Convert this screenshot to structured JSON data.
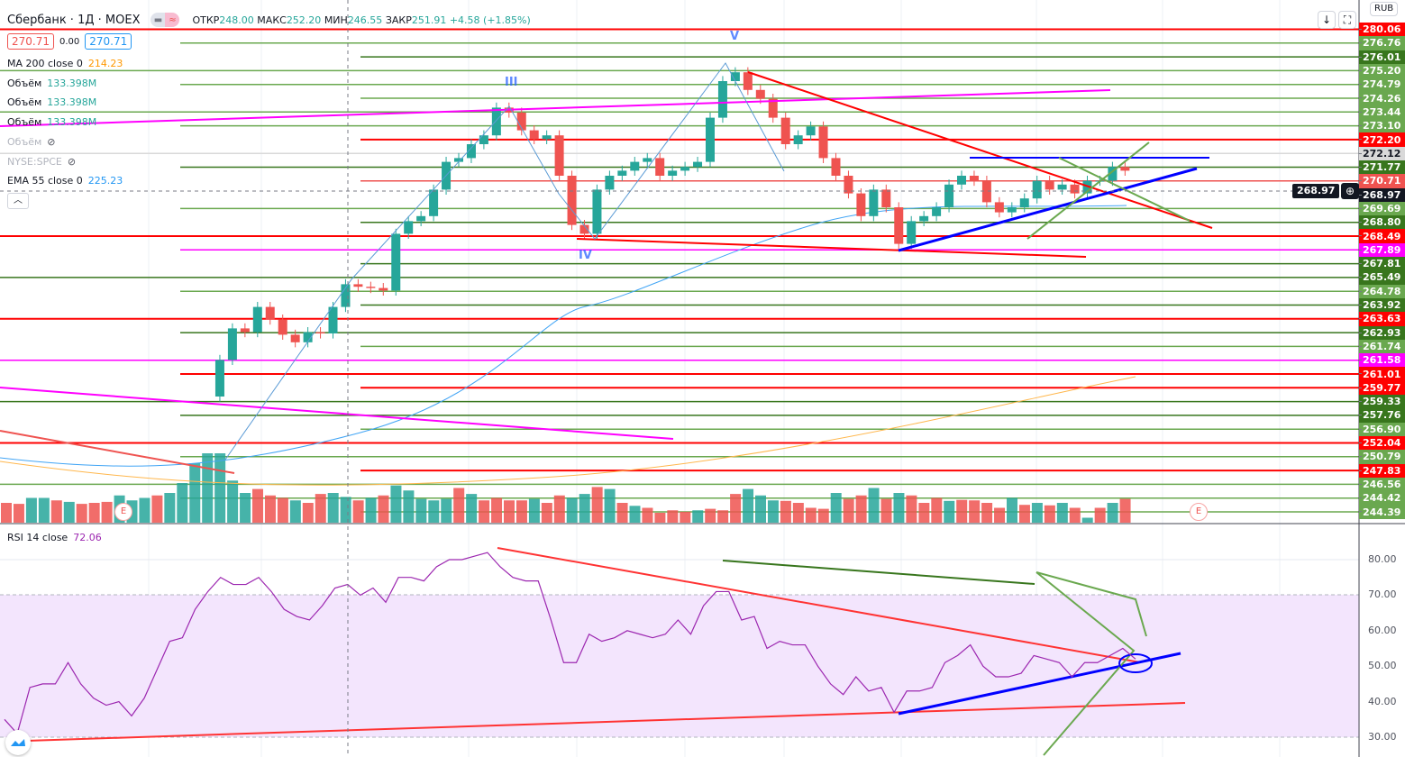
{
  "header": {
    "symbol": "Сбербанк · 1Д · MOEX",
    "ohlc": {
      "o_label": "ОТКР",
      "o": "248.00",
      "h_label": "МАКС",
      "h": "252.20",
      "l_label": "МИН",
      "l": "246.55",
      "c_label": "ЗАКР",
      "c": "251.91",
      "change": "+4.58 (+1.85%)"
    },
    "sell": "270.71",
    "spread": "0.00",
    "buy": "270.71"
  },
  "indicators": [
    {
      "name": "MA 200 close 0",
      "value": "214.23",
      "color": "#ff9800"
    },
    {
      "name": "Объём",
      "value": "133.398M",
      "color": "#26a69a"
    },
    {
      "name": "Объём",
      "value": "133.398M",
      "color": "#26a69a"
    },
    {
      "name": "Объём",
      "value": "133.398M",
      "color": "#26a69a"
    },
    {
      "name": "Объём",
      "value": "",
      "hidden": true
    },
    {
      "name": "NYSE:SPCE",
      "value": "",
      "hidden": true
    },
    {
      "name": "EMA 55 close 0",
      "value": "225.23",
      "color": "#2196f3"
    }
  ],
  "toolbar": {
    "currency": "RUB",
    "crosshair_price": "268.97"
  },
  "waves": [
    "III",
    "IV",
    "V"
  ],
  "earnings_marker": "E",
  "levels": [
    {
      "t": "280.06",
      "c": "#ff0000"
    },
    {
      "t": "276.76",
      "c": "#6aa84f"
    },
    {
      "t": "276.01",
      "c": "#38761d"
    },
    {
      "t": "275.20",
      "c": "#6aa84f"
    },
    {
      "t": "274.79",
      "c": "#6aa84f"
    },
    {
      "t": "274.26",
      "c": "#6aa84f"
    },
    {
      "t": "273.44",
      "c": "#6aa84f"
    },
    {
      "t": "273.10",
      "c": "#6aa84f"
    },
    {
      "t": "272.20",
      "c": "#ff0000"
    },
    {
      "t": "272.12",
      "c": "#d9d9d9",
      "dark": true
    },
    {
      "t": "271.77",
      "c": "#38761d"
    },
    {
      "t": "270.71",
      "c": "#ef5350"
    },
    {
      "t": "268.97",
      "c": "#131722"
    },
    {
      "t": "269.69",
      "c": "#6aa84f"
    },
    {
      "t": "268.80",
      "c": "#38761d"
    },
    {
      "t": "268.49",
      "c": "#ff0000"
    },
    {
      "t": "267.89",
      "c": "#ff00ff"
    },
    {
      "t": "267.81",
      "c": "#38761d"
    },
    {
      "t": "265.49",
      "c": "#38761d"
    },
    {
      "t": "264.78",
      "c": "#6aa84f"
    },
    {
      "t": "263.92",
      "c": "#38761d"
    },
    {
      "t": "263.63",
      "c": "#ff0000"
    },
    {
      "t": "262.93",
      "c": "#38761d"
    },
    {
      "t": "261.74",
      "c": "#6aa84f"
    },
    {
      "t": "261.58",
      "c": "#ff00ff"
    },
    {
      "t": "261.01",
      "c": "#ff0000"
    },
    {
      "t": "259.77",
      "c": "#ff0000"
    },
    {
      "t": "259.33",
      "c": "#38761d"
    },
    {
      "t": "257.76",
      "c": "#38761d"
    },
    {
      "t": "256.90",
      "c": "#6aa84f"
    },
    {
      "t": "252.04",
      "c": "#ff0000"
    },
    {
      "t": "250.79",
      "c": "#6aa84f"
    },
    {
      "t": "247.83",
      "c": "#ff0000"
    },
    {
      "t": "246.56",
      "c": "#6aa84f"
    },
    {
      "t": "244.42",
      "c": "#6aa84f"
    },
    {
      "t": "244.39",
      "c": "#6aa84f"
    }
  ],
  "rsi": {
    "label": "RSI 14 close",
    "value": "72.06",
    "ticks": [
      "80.00",
      "70.00",
      "60.00",
      "50.00",
      "40.00",
      "30.00"
    ],
    "values": [
      35,
      31,
      44,
      45,
      45,
      51,
      45,
      41,
      39,
      40,
      36,
      41,
      49,
      57,
      58,
      66,
      71,
      75,
      73,
      73,
      75,
      71,
      66,
      64,
      63,
      67,
      72,
      73,
      70,
      72,
      68,
      75,
      75,
      74,
      78,
      80,
      80,
      81,
      82,
      78,
      75,
      74,
      74,
      63,
      51,
      51,
      59,
      57,
      58,
      60,
      59,
      58,
      59,
      63,
      59,
      67,
      71,
      71,
      63,
      64,
      55,
      57,
      56,
      56,
      50,
      45,
      42,
      47,
      43,
      44,
      37,
      43,
      43,
      44,
      51,
      53,
      56,
      50,
      47,
      47,
      48,
      53,
      52,
      51,
      47,
      51,
      51,
      53,
      55,
      52
    ]
  },
  "chart": {
    "colors": {
      "up": "#26a69a",
      "down": "#ef5350"
    },
    "closes": [
      250.0,
      252.9,
      255.4,
      255.1,
      257.1,
      256.1,
      254.9,
      254.3,
      255.1,
      255.0,
      257.1,
      258.9,
      258.7,
      258.6,
      258.4,
      262.9,
      263.9,
      264.3,
      266.4,
      268.6,
      268.9,
      270.0,
      270.7,
      272.9,
      272.5,
      271.1,
      270.4,
      270.7,
      267.5,
      263.6,
      262.9,
      266.4,
      267.5,
      267.9,
      268.6,
      268.9,
      267.5,
      267.9,
      268.2,
      268.6,
      272.1,
      275.0,
      275.7,
      274.3,
      273.6,
      272.1,
      270.0,
      270.7,
      271.4,
      268.9,
      267.5,
      266.1,
      264.3,
      266.4,
      265.0,
      262.1,
      263.9,
      264.3,
      265.0,
      266.8,
      267.5,
      267.1,
      265.4,
      264.6,
      265.0,
      265.7,
      267.1,
      266.4,
      266.8,
      266.1,
      267.1,
      267.1,
      268.2,
      267.9
    ],
    "volumes": [
      40,
      38,
      50,
      50,
      45,
      42,
      38,
      40,
      42,
      55,
      45,
      50,
      55,
      60,
      80,
      120,
      140,
      140,
      85,
      60,
      68,
      55,
      50,
      45,
      40,
      58,
      60,
      52,
      45,
      50,
      55,
      75,
      65,
      48,
      45,
      48,
      70,
      58,
      45,
      50,
      45,
      45,
      48,
      40,
      55,
      50,
      58,
      72,
      68,
      40,
      34,
      30,
      20,
      25,
      22,
      25,
      28,
      25,
      58,
      68,
      55,
      45,
      44,
      40,
      30,
      28,
      60,
      48,
      55,
      70,
      48,
      60,
      55,
      40,
      50,
      44,
      46,
      45,
      40,
      30,
      50,
      36,
      40,
      35,
      40,
      30,
      10,
      30,
      40,
      48
    ],
    "vol_up": "rrggrgrrrgggrgggggggrrrgrrggrgrgggggrgrrrrgrrggrgrgrrrrgrrrgggrrrrgrrgrgrrrgrrrrgrgrgrgrgrg"
  }
}
